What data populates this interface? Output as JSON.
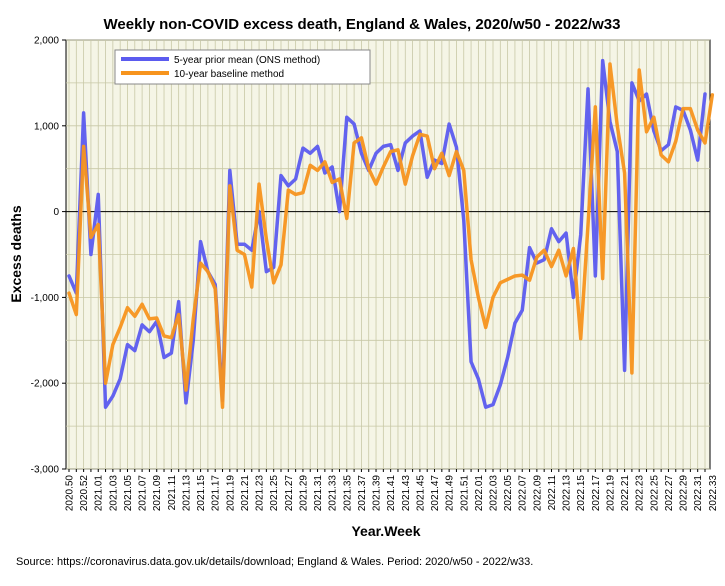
{
  "chart_data": {
    "type": "line",
    "title": "Weekly non-COVID excess death, England & Wales, 2020/w50 - 2022/w33",
    "xlabel": "Year.Week",
    "ylabel": "Excess deaths",
    "ylim": [
      -3000,
      2000
    ],
    "yticks": [
      -3000,
      -2000,
      -1000,
      0,
      1000,
      2000
    ],
    "ytick_labels": [
      "-3,000",
      "-2,000",
      "-1,000",
      "0",
      "1,000",
      "2,000"
    ],
    "grid": true,
    "legend_position": "top-left",
    "xtick_labels": [
      "2020.50",
      "2020.52",
      "2021.01",
      "2021.03",
      "2021.05",
      "2021.07",
      "2021.09",
      "2021.11",
      "2021.13",
      "2021.15",
      "2021.17",
      "2021.19",
      "2021.21",
      "2021.23",
      "2021.25",
      "2021.27",
      "2021.29",
      "2021.31",
      "2021.33",
      "2021.35",
      "2021.37",
      "2021.39",
      "2021.41",
      "2021.43",
      "2021.45",
      "2021.47",
      "2021.49",
      "2021.51",
      "2022.01",
      "2022.03",
      "2022.05",
      "2022.07",
      "2022.09",
      "2022.11",
      "2022.13",
      "2022.15",
      "2022.17",
      "2022.19",
      "2022.21",
      "2022.23",
      "2022.25",
      "2022.27",
      "2022.29",
      "2022.31",
      "2022.33"
    ],
    "series": [
      {
        "name": "5-year prior mean (ONS method)",
        "color": "#5b5bef",
        "values": [
          -750,
          -950,
          1150,
          -500,
          200,
          -2280,
          -2150,
          -1950,
          -1550,
          -1620,
          -1320,
          -1400,
          -1280,
          -1700,
          -1650,
          -1050,
          -2230,
          -1500,
          -350,
          -700,
          -850,
          -2200,
          480,
          -380,
          -380,
          -450,
          0,
          -700,
          -650,
          420,
          300,
          380,
          740,
          680,
          760,
          450,
          520,
          0,
          1100,
          1020,
          680,
          480,
          680,
          760,
          780,
          480,
          800,
          880,
          940,
          400,
          600,
          560,
          1020,
          750,
          -100,
          -1750,
          -1950,
          -2280,
          -2250,
          -2020,
          -1700,
          -1300,
          -1150,
          -420,
          -600,
          -560,
          -200,
          -350,
          -250,
          -1000,
          -270,
          1430,
          -750,
          1760,
          1050,
          700,
          -1850,
          1500,
          1290,
          1370,
          940,
          710,
          780,
          1220,
          1180,
          950,
          600,
          1370
        ]
      },
      {
        "name": "10-year baseline method",
        "color": "#f7941d",
        "values": [
          -950,
          -1200,
          760,
          -300,
          -150,
          -2000,
          -1550,
          -1350,
          -1120,
          -1220,
          -1080,
          -1250,
          -1240,
          -1450,
          -1470,
          -1200,
          -2080,
          -1250,
          -600,
          -700,
          -900,
          -2280,
          300,
          -450,
          -500,
          -880,
          320,
          -320,
          -830,
          -620,
          250,
          200,
          220,
          540,
          480,
          580,
          340,
          380,
          -80,
          800,
          860,
          500,
          320,
          520,
          700,
          720,
          320,
          650,
          900,
          880,
          500,
          680,
          420,
          700,
          480,
          -560,
          -1000,
          -1350,
          -1000,
          -830,
          -790,
          -750,
          -740,
          -800,
          -530,
          -450,
          -640,
          -450,
          -750,
          -430,
          -1480,
          -150,
          1220,
          -780,
          1720,
          1000,
          450,
          -1880,
          1650,
          930,
          1100,
          660,
          580,
          820,
          1200,
          1200,
          950,
          800,
          1360
        ]
      }
    ]
  },
  "source_text": "Source: https://coronavirus.data.gov.uk/details/download; England & Wales. Period: 2020/w50 - 2022/w33."
}
